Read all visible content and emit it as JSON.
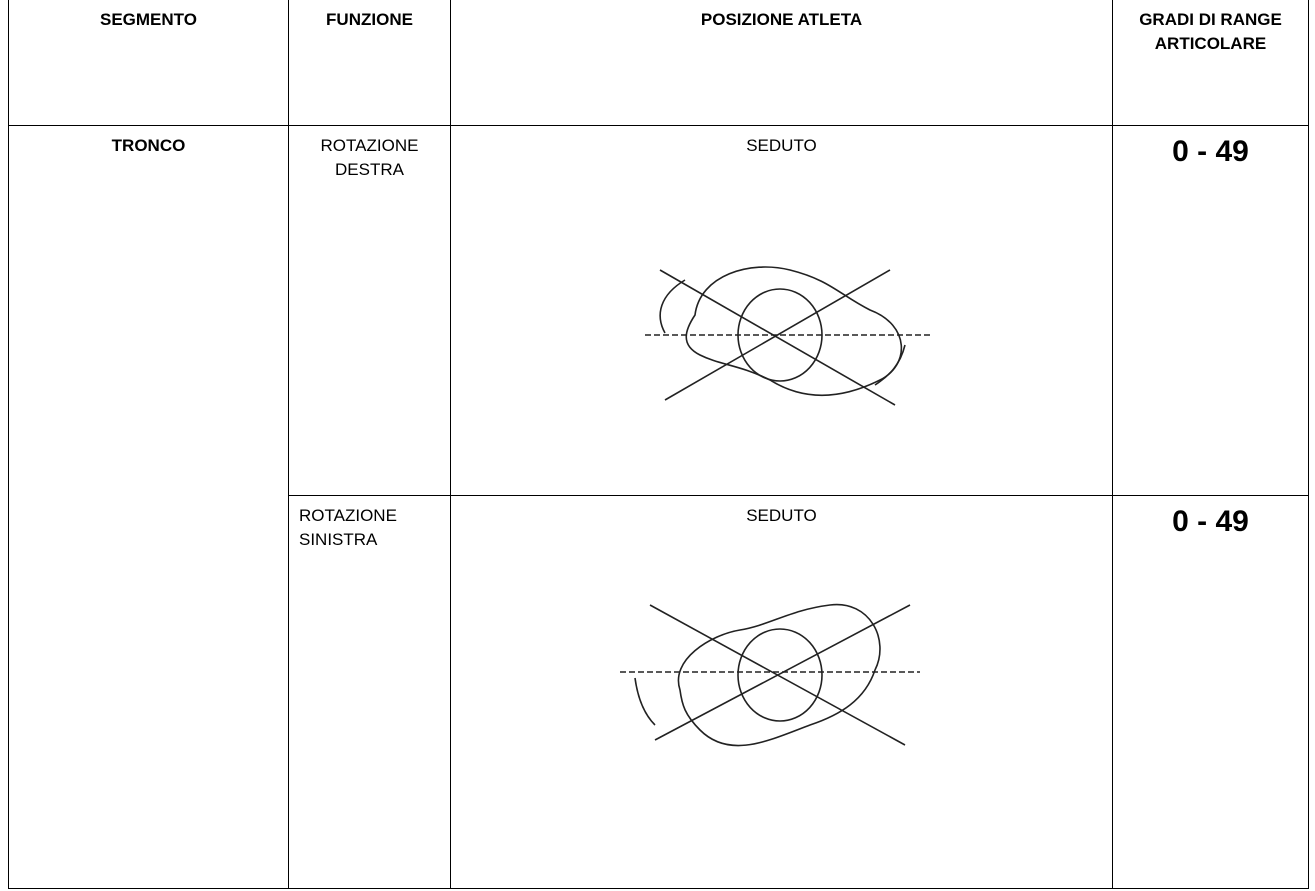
{
  "table": {
    "header": [
      "SEGMENTO",
      "FUNZIONE",
      "POSIZIONE ATLETA",
      "GRADI DI RANGE ARTICOLARE"
    ],
    "segment": "TRONCO",
    "rows": [
      {
        "function": "ROTAZIONE DESTRA",
        "position": "SEDUTO",
        "range": "0 - 49"
      },
      {
        "function": "ROTAZIONE SINISTRA",
        "position": "SEDUTO",
        "range": "0 - 49"
      }
    ]
  }
}
